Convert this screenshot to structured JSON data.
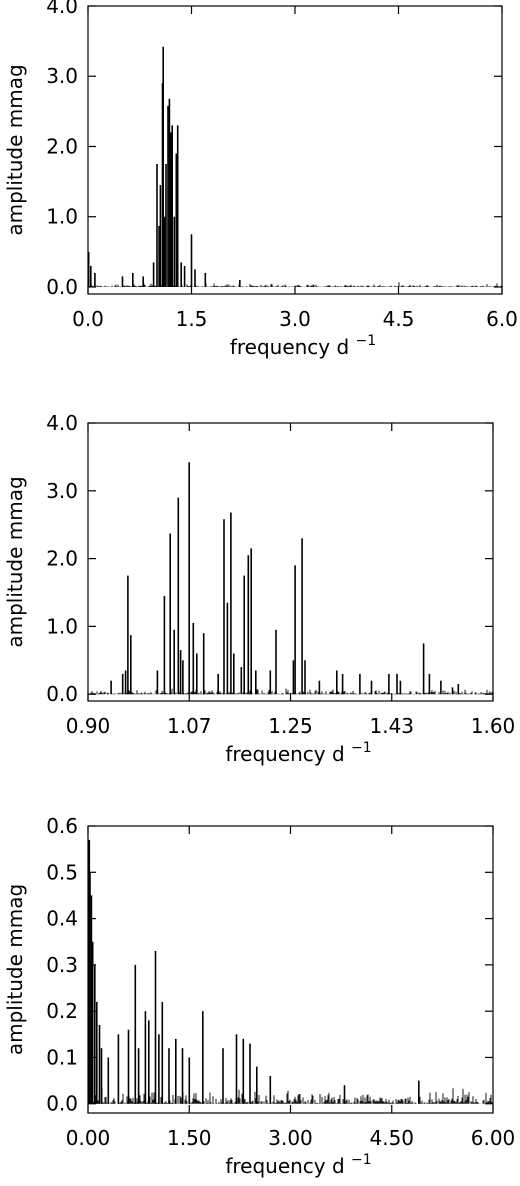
{
  "chart_data": [
    {
      "type": "line",
      "xlabel": "frequency d",
      "xlabel_sup": "−1",
      "ylabel": "amplitude mmag",
      "xlim": [
        0.0,
        6.0
      ],
      "ylim": [
        -0.1,
        4.0
      ],
      "xticks": [
        0.0,
        1.5,
        3.0,
        4.5,
        6.0
      ],
      "xtick_labels": [
        "0.0",
        "1.5",
        "3.0",
        "4.5",
        "6.0"
      ],
      "yticks": [
        0.0,
        1.0,
        2.0,
        3.0,
        4.0
      ],
      "ytick_labels": [
        "0.0",
        "1.0",
        "2.0",
        "3.0",
        "4.0"
      ],
      "grid": false,
      "noise_level": 0.05,
      "peaks": [
        [
          0.01,
          0.5
        ],
        [
          0.04,
          0.3
        ],
        [
          0.1,
          0.2
        ],
        [
          0.5,
          0.15
        ],
        [
          0.65,
          0.2
        ],
        [
          0.8,
          0.15
        ],
        [
          0.95,
          0.35
        ],
        [
          1.0,
          1.75
        ],
        [
          1.03,
          0.87
        ],
        [
          1.04,
          0.6
        ],
        [
          1.05,
          1.45
        ],
        [
          1.08,
          2.9
        ],
        [
          1.09,
          3.42
        ],
        [
          1.11,
          1.0
        ],
        [
          1.13,
          1.75
        ],
        [
          1.16,
          2.58
        ],
        [
          1.18,
          2.68
        ],
        [
          1.2,
          2.2
        ],
        [
          1.22,
          2.3
        ],
        [
          1.25,
          1.0
        ],
        [
          1.28,
          1.9
        ],
        [
          1.3,
          2.3
        ],
        [
          1.35,
          0.35
        ],
        [
          1.4,
          0.3
        ],
        [
          1.5,
          0.75
        ],
        [
          1.55,
          0.25
        ],
        [
          1.7,
          0.2
        ],
        [
          2.2,
          0.1
        ]
      ]
    },
    {
      "type": "line",
      "xlabel": "frequency d",
      "xlabel_sup": "−1",
      "ylabel": "amplitude mmag",
      "xlim": [
        0.9,
        1.6
      ],
      "ylim": [
        -0.1,
        4.0
      ],
      "xticks": [
        0.9,
        1.075,
        1.25,
        1.425,
        1.6
      ],
      "xtick_labels": [
        "0.90",
        "1.07",
        "1.25",
        "1.43",
        "1.60"
      ],
      "yticks": [
        0.0,
        1.0,
        2.0,
        3.0,
        4.0
      ],
      "ytick_labels": [
        "0.0",
        "1.0",
        "2.0",
        "3.0",
        "4.0"
      ],
      "grid": false,
      "noise_level": 0.08,
      "peaks": [
        [
          0.94,
          0.2
        ],
        [
          0.96,
          0.3
        ],
        [
          0.965,
          0.35
        ],
        [
          0.969,
          1.75
        ],
        [
          0.974,
          0.87
        ],
        [
          1.02,
          0.35
        ],
        [
          1.032,
          1.45
        ],
        [
          1.042,
          2.37
        ],
        [
          1.049,
          0.95
        ],
        [
          1.056,
          2.9
        ],
        [
          1.06,
          0.65
        ],
        [
          1.064,
          0.5
        ],
        [
          1.075,
          3.42
        ],
        [
          1.082,
          1.05
        ],
        [
          1.088,
          0.6
        ],
        [
          1.1,
          0.9
        ],
        [
          1.125,
          0.3
        ],
        [
          1.135,
          2.58
        ],
        [
          1.141,
          1.35
        ],
        [
          1.147,
          2.68
        ],
        [
          1.152,
          0.6
        ],
        [
          1.165,
          0.4
        ],
        [
          1.17,
          1.75
        ],
        [
          1.177,
          2.05
        ],
        [
          1.182,
          2.15
        ],
        [
          1.19,
          0.35
        ],
        [
          1.215,
          0.35
        ],
        [
          1.225,
          0.95
        ],
        [
          1.255,
          0.5
        ],
        [
          1.258,
          1.9
        ],
        [
          1.27,
          2.3
        ],
        [
          1.275,
          0.5
        ],
        [
          1.3,
          0.2
        ],
        [
          1.33,
          0.35
        ],
        [
          1.34,
          0.3
        ],
        [
          1.37,
          0.3
        ],
        [
          1.39,
          0.2
        ],
        [
          1.42,
          0.3
        ],
        [
          1.434,
          0.3
        ],
        [
          1.44,
          0.2
        ],
        [
          1.48,
          0.75
        ],
        [
          1.49,
          0.3
        ],
        [
          1.51,
          0.2
        ],
        [
          1.53,
          0.1
        ],
        [
          1.54,
          0.15
        ]
      ]
    },
    {
      "type": "line",
      "xlabel": "frequency d",
      "xlabel_sup": "−1",
      "ylabel": "amplitude mmag",
      "xlim": [
        0.0,
        6.0
      ],
      "ylim": [
        -0.02,
        0.6
      ],
      "xticks": [
        0.0,
        1.5,
        3.0,
        4.5,
        6.0
      ],
      "xtick_labels": [
        "0.00",
        "1.50",
        "3.00",
        "4.50",
        "6.00"
      ],
      "yticks": [
        0.0,
        0.1,
        0.2,
        0.3,
        0.4,
        0.5,
        0.6
      ],
      "ytick_labels": [
        "0.0",
        "0.1",
        "0.2",
        "0.3",
        "0.4",
        "0.5",
        "0.6"
      ],
      "grid": false,
      "noise_level": 0.03,
      "peaks": [
        [
          0.02,
          0.57
        ],
        [
          0.03,
          0.5
        ],
        [
          0.05,
          0.45
        ],
        [
          0.07,
          0.35
        ],
        [
          0.1,
          0.3
        ],
        [
          0.13,
          0.22
        ],
        [
          0.17,
          0.17
        ],
        [
          0.2,
          0.12
        ],
        [
          0.3,
          0.1
        ],
        [
          0.45,
          0.15
        ],
        [
          0.6,
          0.16
        ],
        [
          0.7,
          0.3
        ],
        [
          0.75,
          0.12
        ],
        [
          0.85,
          0.2
        ],
        [
          0.9,
          0.18
        ],
        [
          1.0,
          0.33
        ],
        [
          1.05,
          0.15
        ],
        [
          1.1,
          0.22
        ],
        [
          1.2,
          0.12
        ],
        [
          1.3,
          0.14
        ],
        [
          1.4,
          0.12
        ],
        [
          1.5,
          0.1
        ],
        [
          1.7,
          0.2
        ],
        [
          2.0,
          0.12
        ],
        [
          2.2,
          0.15
        ],
        [
          2.3,
          0.14
        ],
        [
          2.4,
          0.13
        ],
        [
          2.5,
          0.08
        ],
        [
          2.7,
          0.06
        ],
        [
          3.8,
          0.04
        ],
        [
          4.9,
          0.05
        ]
      ]
    }
  ]
}
